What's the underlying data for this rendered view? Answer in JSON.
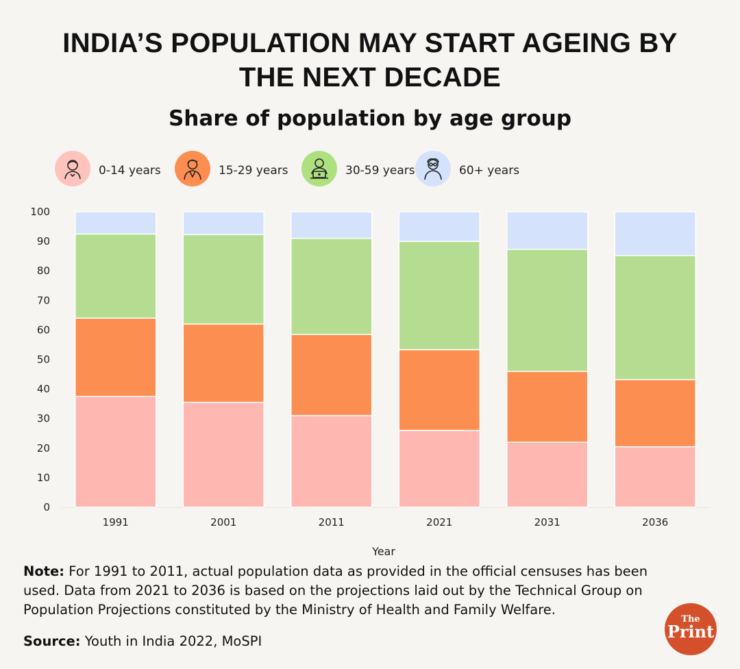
{
  "header": {
    "title_line1": "INDIA’S POPULATION MAY START AGEING BY",
    "title_line2": "THE NEXT DECADE",
    "subtitle": "Share of population by age group"
  },
  "legend": [
    {
      "label": "0-14 years",
      "icon": "child-icon",
      "color": "#ffb7b1"
    },
    {
      "label": "15-29 years",
      "icon": "young-adult-icon",
      "color": "#fd8e51"
    },
    {
      "label": "30-59 years",
      "icon": "laptop-worker-icon",
      "color": "#b5dd92"
    },
    {
      "label": "60+ years",
      "icon": "elderly-person-icon",
      "color": "#d4e2fb"
    }
  ],
  "chart_data": {
    "type": "bar",
    "stacked": true,
    "title": "Share of population by age group",
    "xlabel": "Year",
    "ylabel": "",
    "ylim": [
      0,
      100
    ],
    "yticks": [
      0,
      10,
      20,
      30,
      40,
      50,
      60,
      70,
      80,
      90,
      100
    ],
    "categories": [
      "1991",
      "2001",
      "2011",
      "2021",
      "2031",
      "2036"
    ],
    "series": [
      {
        "name": "0-14 years",
        "color": "#ffb7b1",
        "values": [
          37.5,
          35.5,
          31,
          26,
          22,
          20.5
        ]
      },
      {
        "name": "15-29 years",
        "color": "#fd8e51",
        "values": [
          26.5,
          26.5,
          27.5,
          27.3,
          24,
          22.7
        ]
      },
      {
        "name": "30-59 years",
        "color": "#b5dd92",
        "values": [
          28.5,
          30.3,
          32.5,
          36.7,
          41.3,
          42
        ]
      },
      {
        "name": "60+ years",
        "color": "#d4e2fb",
        "values": [
          7.5,
          7.7,
          9,
          10,
          12.7,
          14.8
        ]
      }
    ],
    "grid": false,
    "legend_position": "top"
  },
  "footer": {
    "note_label": "Note:",
    "note_text": " For 1991 to 2011, actual population data as provided in the official censuses has been used. Data from 2021 to 2036 is based on the projections laid out by the Technical Group on Population Projections constituted by the Ministry of Health and Family Welfare.",
    "source_label": "Source:",
    "source_text": " Youth in India 2022, MoSPI"
  },
  "logo": {
    "the": "The",
    "print": "Print",
    "color": "#d4502a"
  }
}
